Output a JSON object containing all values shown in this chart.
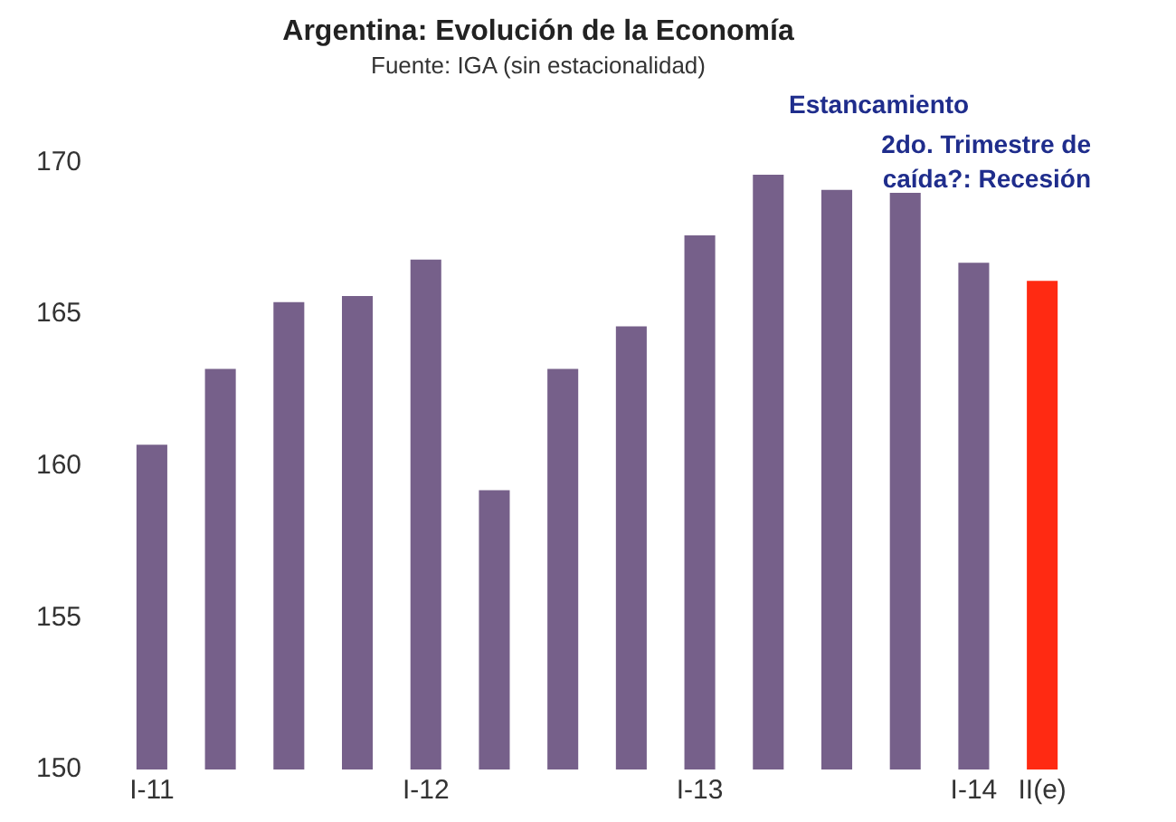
{
  "chart_data": {
    "type": "bar",
    "title": "Argentina: Evolución de la Economía",
    "subtitle": "Fuente: IGA (sin estacionalidad)",
    "categories": [
      "I-11",
      null,
      null,
      null,
      "I-12",
      null,
      null,
      null,
      "I-13",
      null,
      null,
      null,
      "I-14",
      "II(e)"
    ],
    "values": [
      160.7,
      163.2,
      165.4,
      165.6,
      166.8,
      159.2,
      163.2,
      164.6,
      167.6,
      169.6,
      169.1,
      169.0,
      166.7,
      166.1
    ],
    "colors": [
      "#76608a",
      "#76608a",
      "#76608a",
      "#76608a",
      "#76608a",
      "#76608a",
      "#76608a",
      "#76608a",
      "#76608a",
      "#76608a",
      "#76608a",
      "#76608a",
      "#76608a",
      "#ff2a12"
    ],
    "ylim": [
      150,
      170
    ],
    "yticks": [
      150,
      155,
      160,
      165,
      170
    ],
    "grid": false,
    "legend": false,
    "annotations": [
      "Estancamiento",
      "2do. Trimestre de caída?: Recesión"
    ]
  }
}
